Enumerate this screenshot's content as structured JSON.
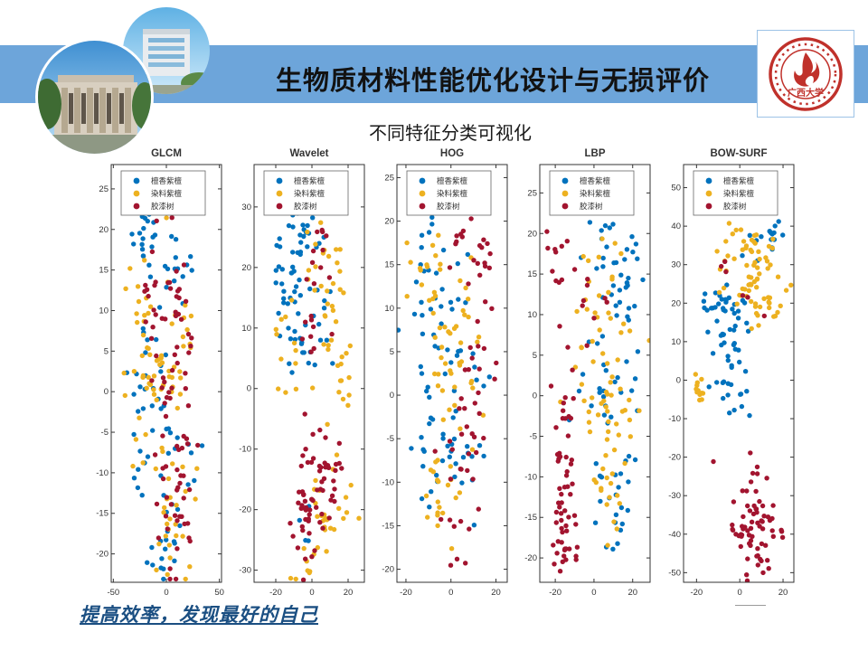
{
  "slide": {
    "title": "生物质材料性能优化设计与无损评价",
    "subtitle": "不同特征分类可视化",
    "footer": "提高效率，发现最好的自己",
    "logo_text": "广西大学",
    "colors": {
      "banner_blue": "#6DA5DA",
      "footer_blue": "#1B4F82",
      "logo_red": "#C0312B",
      "series_blue": "#0072BD",
      "series_yellow": "#EDB120",
      "series_red": "#A2142F"
    }
  },
  "chart_data": [
    {
      "type": "scatter",
      "title": "GLCM",
      "xlabel": "",
      "ylabel": "",
      "xlim": [
        -52,
        52
      ],
      "ylim": [
        -23.5,
        28
      ],
      "xticks": [
        -50,
        0,
        50
      ],
      "yticks": [
        25,
        20,
        15,
        10,
        5,
        0,
        -5,
        -10,
        -15,
        -20
      ],
      "grid": false,
      "legend_position": "top-left-inside",
      "series": [
        {
          "name": "檀香紫檀",
          "color": "#0072BD",
          "clusters": [
            {
              "cx": -20,
              "cy": 19,
              "sx": 6,
              "sy": 2.5,
              "n": 22
            },
            {
              "cx": 10,
              "cy": 15,
              "sx": 8,
              "sy": 2.5,
              "n": 14
            },
            {
              "cx": -15,
              "cy": 2,
              "sx": 10,
              "sy": 6,
              "n": 30
            },
            {
              "cx": 5,
              "cy": -12,
              "sx": 10,
              "sy": 5,
              "n": 22
            },
            {
              "cx": -5,
              "cy": -19,
              "sx": 8,
              "sy": 2,
              "n": 10
            }
          ]
        },
        {
          "name": "染料紫檀",
          "color": "#EDB120",
          "clusters": [
            {
              "cx": -22,
              "cy": 13,
              "sx": 7,
              "sy": 4,
              "n": 16
            },
            {
              "cx": -10,
              "cy": 0,
              "sx": 11,
              "sy": 7,
              "n": 36
            },
            {
              "cx": 12,
              "cy": 8,
              "sx": 8,
              "sy": 5,
              "n": 16
            },
            {
              "cx": 5,
              "cy": -15,
              "sx": 10,
              "sy": 4,
              "n": 25
            }
          ]
        },
        {
          "name": "胶漆树",
          "color": "#A2142F",
          "clusters": [
            {
              "cx": -15,
              "cy": 12,
              "sx": 6,
              "sy": 4,
              "n": 12
            },
            {
              "cx": 12,
              "cy": 10,
              "sx": 8,
              "sy": 5,
              "n": 20
            },
            {
              "cx": 5,
              "cy": -2,
              "sx": 10,
              "sy": 6,
              "n": 33
            },
            {
              "cx": 12,
              "cy": -14,
              "sx": 8,
              "sy": 4,
              "n": 25
            }
          ]
        }
      ]
    },
    {
      "type": "scatter",
      "title": "Wavelet",
      "xlabel": "",
      "ylabel": "",
      "xlim": [
        -32,
        29
      ],
      "ylim": [
        -32,
        37
      ],
      "xticks": [
        -20,
        0,
        20
      ],
      "yticks": [
        30,
        20,
        10,
        0,
        -10,
        -20,
        -30
      ],
      "grid": false,
      "legend_position": "top-left-inside",
      "series": [
        {
          "name": "檀香紫檀",
          "color": "#0072BD",
          "clusters": [
            {
              "cx": -5,
              "cy": 26,
              "sx": 5,
              "sy": 2,
              "n": 18
            },
            {
              "cx": -12,
              "cy": 18,
              "sx": 5,
              "sy": 4,
              "n": 26
            },
            {
              "cx": -8,
              "cy": 8,
              "sx": 6,
              "sy": 4,
              "n": 18
            },
            {
              "cx": 5,
              "cy": 14,
              "sx": 6,
              "sy": 5,
              "n": 12
            },
            {
              "cx": -3,
              "cy": -24,
              "sx": 4,
              "sy": 3,
              "n": 4
            }
          ]
        },
        {
          "name": "染料紫檀",
          "color": "#EDB120",
          "clusters": [
            {
              "cx": 8,
              "cy": 20,
              "sx": 6,
              "sy": 4,
              "n": 20
            },
            {
              "cx": 14,
              "cy": 5,
              "sx": 6,
              "sy": 6,
              "n": 24
            },
            {
              "cx": -14,
              "cy": 5,
              "sx": 4,
              "sy": 5,
              "n": 12
            },
            {
              "cx": 12,
              "cy": -20,
              "sx": 6,
              "sy": 5,
              "n": 24
            },
            {
              "cx": -3,
              "cy": -28,
              "sx": 4,
              "sy": 3,
              "n": 8
            }
          ]
        },
        {
          "name": "胶漆树",
          "color": "#A2142F",
          "clusters": [
            {
              "cx": 2,
              "cy": 25,
              "sx": 4,
              "sy": 2,
              "n": 6
            },
            {
              "cx": 3,
              "cy": 12,
              "sx": 6,
              "sy": 5,
              "n": 14
            },
            {
              "cx": -3,
              "cy": -20,
              "sx": 4,
              "sy": 6,
              "n": 40
            },
            {
              "cx": 10,
              "cy": -15,
              "sx": 4,
              "sy": 5,
              "n": 25
            }
          ]
        }
      ]
    },
    {
      "type": "scatter",
      "title": "HOG",
      "xlabel": "",
      "ylabel": "",
      "xlim": [
        -24,
        25
      ],
      "ylim": [
        -21.5,
        26.5
      ],
      "xticks": [
        -20,
        0,
        20
      ],
      "yticks": [
        25,
        20,
        15,
        10,
        5,
        0,
        -5,
        -10,
        -15,
        -20
      ],
      "grid": false,
      "legend_position": "top-left-inside",
      "series": [
        {
          "name": "檀香紫檀",
          "color": "#0072BD",
          "clusters": [
            {
              "cx": -8,
              "cy": 16,
              "sx": 5,
              "sy": 2.5,
              "n": 14
            },
            {
              "cx": -5,
              "cy": 5,
              "sx": 7,
              "sy": 5,
              "n": 30
            },
            {
              "cx": -5,
              "cy": -8,
              "sx": 6,
              "sy": 4,
              "n": 25
            },
            {
              "cx": 8,
              "cy": -3,
              "sx": 5,
              "sy": 5,
              "n": 12
            }
          ]
        },
        {
          "name": "染料紫檀",
          "color": "#EDB120",
          "clusters": [
            {
              "cx": -8,
              "cy": 13,
              "sx": 6,
              "sy": 4,
              "n": 20
            },
            {
              "cx": 0,
              "cy": 2,
              "sx": 7,
              "sy": 6,
              "n": 30
            },
            {
              "cx": -5,
              "cy": -13,
              "sx": 5,
              "sy": 3,
              "n": 18
            },
            {
              "cx": 8,
              "cy": 8,
              "sx": 4,
              "sy": 4,
              "n": 10
            }
          ]
        },
        {
          "name": "胶漆树",
          "color": "#A2142F",
          "clusters": [
            {
              "cx": 10,
              "cy": 16,
              "sx": 4,
              "sy": 2.5,
              "n": 16
            },
            {
              "cx": 12,
              "cy": 5,
              "sx": 4,
              "sy": 4,
              "n": 14
            },
            {
              "cx": 8,
              "cy": -7,
              "sx": 5,
              "sy": 4,
              "n": 20
            },
            {
              "cx": 0,
              "cy": 20,
              "sx": 6,
              "sy": 1.5,
              "n": 6
            },
            {
              "cx": 3,
              "cy": -17,
              "sx": 5,
              "sy": 2,
              "n": 8
            }
          ]
        }
      ]
    },
    {
      "type": "scatter",
      "title": "LBP",
      "xlabel": "",
      "ylabel": "",
      "xlim": [
        -28,
        29
      ],
      "ylim": [
        -23,
        28.5
      ],
      "xticks": [
        -20,
        0,
        20
      ],
      "yticks": [
        25,
        20,
        15,
        10,
        5,
        0,
        -5,
        -10,
        -15,
        -20
      ],
      "grid": false,
      "legend_position": "top-left-inside",
      "series": [
        {
          "name": "檀香紫檀",
          "color": "#0072BD",
          "clusters": [
            {
              "cx": 8,
              "cy": 19,
              "sx": 7,
              "sy": 3,
              "n": 20
            },
            {
              "cx": 12,
              "cy": 10,
              "sx": 7,
              "sy": 4,
              "n": 25
            },
            {
              "cx": 5,
              "cy": 0,
              "sx": 8,
              "sy": 4,
              "n": 20
            },
            {
              "cx": 10,
              "cy": -8,
              "sx": 6,
              "sy": 4,
              "n": 15
            },
            {
              "cx": 11,
              "cy": -16,
              "sx": 3,
              "sy": 2,
              "n": 8
            }
          ]
        },
        {
          "name": "染料紫檀",
          "color": "#EDB120",
          "clusters": [
            {
              "cx": 5,
              "cy": 12,
              "sx": 7,
              "sy": 4,
              "n": 20
            },
            {
              "cx": 8,
              "cy": 2,
              "sx": 8,
              "sy": 4,
              "n": 30
            },
            {
              "cx": 3,
              "cy": -6,
              "sx": 6,
              "sy": 4,
              "n": 18
            },
            {
              "cx": 9,
              "cy": -14,
              "sx": 4,
              "sy": 2,
              "n": 10
            }
          ]
        },
        {
          "name": "胶漆树",
          "color": "#A2142F",
          "clusters": [
            {
              "cx": -17,
              "cy": 15,
              "sx": 4,
              "sy": 3,
              "n": 12
            },
            {
              "cx": -16,
              "cy": -5,
              "sx": 4,
              "sy": 5,
              "n": 25
            },
            {
              "cx": -15,
              "cy": -17,
              "sx": 4,
              "sy": 4,
              "n": 35
            },
            {
              "cx": -3,
              "cy": 10,
              "sx": 5,
              "sy": 4,
              "n": 8
            }
          ]
        }
      ]
    },
    {
      "type": "scatter",
      "title": "BOW-SURF",
      "xlabel": "",
      "ylabel": "",
      "xlim": [
        -26,
        25
      ],
      "ylim": [
        -52.5,
        56
      ],
      "xticks": [
        -20,
        0,
        20
      ],
      "yticks": [
        50,
        40,
        30,
        20,
        10,
        0,
        -10,
        -20,
        -30,
        -40,
        -50
      ],
      "grid": false,
      "legend_position": "top-left-inside",
      "series": [
        {
          "name": "檀香紫檀",
          "color": "#0072BD",
          "clusters": [
            {
              "cx": -8,
              "cy": 20,
              "sx": 5,
              "sy": 3,
              "n": 25
            },
            {
              "cx": -5,
              "cy": 8,
              "sx": 5,
              "sy": 5,
              "n": 25
            },
            {
              "cx": -2,
              "cy": -3,
              "sx": 5,
              "sy": 4,
              "n": 15
            },
            {
              "cx": 16,
              "cy": 38,
              "sx": 3,
              "sy": 2,
              "n": 10
            },
            {
              "cx": 8,
              "cy": 33,
              "sx": 3,
              "sy": 2,
              "n": 6
            }
          ]
        },
        {
          "name": "染料紫檀",
          "color": "#EDB120",
          "clusters": [
            {
              "cx": 5,
              "cy": 35,
              "sx": 7,
              "sy": 3,
              "n": 25
            },
            {
              "cx": 10,
              "cy": 27,
              "sx": 6,
              "sy": 4,
              "n": 25
            },
            {
              "cx": 14,
              "cy": 18,
              "sx": 5,
              "sy": 4,
              "n": 15
            },
            {
              "cx": 0,
              "cy": 25,
              "sx": 4,
              "sy": 4,
              "n": 10
            },
            {
              "cx": -19,
              "cy": -2,
              "sx": 1.5,
              "sy": 3,
              "n": 12
            }
          ]
        },
        {
          "name": "胶漆树",
          "color": "#A2142F",
          "clusters": [
            {
              "cx": 7,
              "cy": -38,
              "sx": 6,
              "sy": 7,
              "n": 70
            },
            {
              "cx": -8,
              "cy": 32,
              "sx": 3,
              "sy": 2,
              "n": 3
            },
            {
              "cx": 5,
              "cy": 19,
              "sx": 4,
              "sy": 3,
              "n": 3
            }
          ]
        }
      ]
    }
  ]
}
